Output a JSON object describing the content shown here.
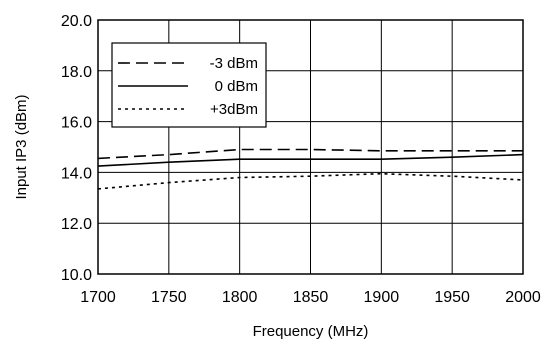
{
  "chart_data": {
    "type": "line",
    "title": "",
    "xlabel": "Frequency (MHz)",
    "ylabel": "Input IP3 (dBm)",
    "xlim": [
      1700,
      2000
    ],
    "ylim": [
      10.0,
      20.0
    ],
    "x_ticks": [
      1700,
      1750,
      1800,
      1850,
      1900,
      1950,
      2000
    ],
    "y_ticks": [
      "10.0",
      "12.0",
      "14.0",
      "16.0",
      "18.0",
      "20.0"
    ],
    "grid": "vertical and horizontal gridlines",
    "legend_position": "top-left",
    "series": [
      {
        "name": "-3 dBm",
        "style": "dashed",
        "x": [
          1700,
          1750,
          1800,
          1850,
          1900,
          1950,
          2000
        ],
        "y": [
          14.55,
          14.7,
          14.9,
          14.9,
          14.85,
          14.85,
          14.85
        ]
      },
      {
        "name": "0 dBm",
        "style": "solid",
        "x": [
          1700,
          1750,
          1800,
          1850,
          1900,
          1950,
          2000
        ],
        "y": [
          14.25,
          14.4,
          14.52,
          14.52,
          14.52,
          14.6,
          14.7
        ]
      },
      {
        "name": "+3dBm",
        "style": "dotted",
        "x": [
          1700,
          1750,
          1800,
          1850,
          1900,
          1950,
          2000
        ],
        "y": [
          13.35,
          13.6,
          13.8,
          13.85,
          13.95,
          13.85,
          13.7
        ]
      }
    ]
  }
}
